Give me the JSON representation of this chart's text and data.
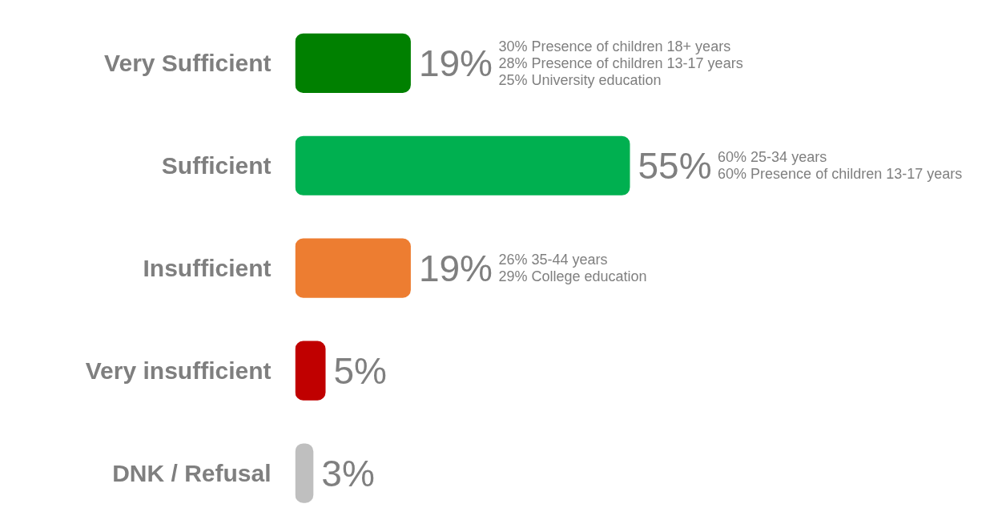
{
  "chart_data": {
    "type": "bar",
    "orientation": "horizontal",
    "categories": [
      "Very Sufficient",
      "Sufficient",
      "Insufficient",
      "Very insufficient",
      "DNK / Refusal"
    ],
    "values": [
      19,
      55,
      19,
      5,
      3
    ],
    "colors": [
      "#008000",
      "#00b050",
      "#ed7d31",
      "#c00000",
      "#bfbfbf"
    ],
    "value_labels": [
      "19%",
      "55%",
      "19%",
      "5%",
      "3%"
    ],
    "annotations": [
      "30% Presence of children 18+ years\n28% Presence of children 13-17 years\n25% University education",
      "60% 25-34 years\n60% Presence of children 13-17 years",
      "26% 35-44 years\n29% College education"
    ]
  }
}
